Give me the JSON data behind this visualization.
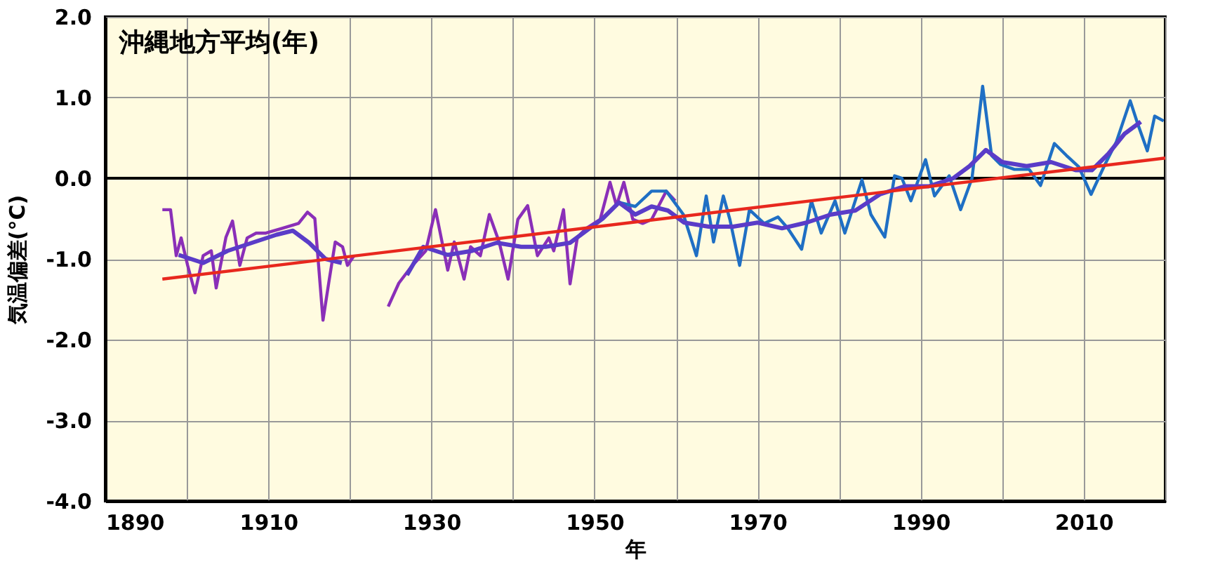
{
  "chart_data": {
    "type": "line",
    "title": "沖縄地方平均(年)",
    "xlabel": "年",
    "ylabel": "気温偏差(°C)",
    "xlim": [
      1890,
      2020
    ],
    "ylim": [
      -4,
      2
    ],
    "xticks": [
      1890,
      {
        "value": 1900,
        "label": null
      },
      1910,
      {
        "value": 1920,
        "label": null
      },
      1930,
      {
        "value": 1940,
        "label": null
      },
      1950,
      {
        "value": 1960,
        "label": null
      },
      1970,
      {
        "value": 1980,
        "label": null
      },
      1990,
      {
        "value": 2000,
        "label": null
      },
      2010,
      {
        "value": 2020,
        "label": null
      }
    ],
    "yticks": [
      {
        "value": 2,
        "label": "2.0"
      },
      {
        "value": 1,
        "label": "1.0"
      },
      {
        "value": 0,
        "label": "0.0"
      },
      {
        "value": -1,
        "label": "-1.0"
      },
      {
        "value": -2,
        "label": "-2.0"
      },
      {
        "value": -3,
        "label": "-3.0"
      },
      {
        "value": -4,
        "label": "-4.0"
      }
    ],
    "grid": true,
    "marker": "none",
    "line_style": "solid",
    "ref_lines": [
      {
        "axis": "y",
        "value": 0,
        "label": null,
        "color": "#000000"
      }
    ],
    "series": [
      {
        "color": "#8a2fb8",
        "x": [
          1897,
          1898,
          1898.7,
          1899.3,
          1900.1,
          1901,
          1902,
          1903,
          1903.6,
          1904.8,
          1905.6,
          1906.5,
          1907.4,
          1908.5,
          1909.7,
          1911.7,
          1913.7,
          1914.8,
          1915.7,
          1916.7,
          1917.4,
          1918.2,
          1919.1,
          1919.7,
          1920.5,
          1923,
          1924.7,
          1926,
          1927.5,
          1929.3,
          1930.5,
          1932,
          1932.8,
          1934,
          1934.8,
          1936,
          1937.1,
          1938.3,
          1939.4,
          1940.6,
          1941.8,
          1943,
          1944.4,
          1945,
          1946.2,
          1947,
          1947.9,
          1949,
          1950.7,
          1951.9,
          1952.7,
          1953.6,
          1954.7,
          1955.9,
          1957,
          1958.8,
          1959.9
        ],
        "values": [
          -0.39,
          -0.39,
          -0.96,
          -0.74,
          -1.08,
          -1.42,
          -0.96,
          -0.9,
          -1.36,
          -0.73,
          -0.53,
          -1.08,
          -0.74,
          -0.68,
          -0.68,
          -0.62,
          -0.56,
          -0.42,
          -0.5,
          -1.76,
          -1.3,
          -0.79,
          -0.85,
          -1.08,
          -0.96,
          null,
          -1.59,
          -1.3,
          -1.1,
          -0.9,
          -0.39,
          -1.14,
          -0.79,
          -1.25,
          -0.85,
          -0.96,
          -0.45,
          -0.79,
          -1.25,
          -0.51,
          -0.34,
          -0.96,
          -0.74,
          -0.9,
          -0.39,
          -1.31,
          -0.73,
          -0.62,
          -0.51,
          -0.05,
          -0.34,
          -0.05,
          -0.51,
          -0.56,
          -0.51,
          -0.16,
          -0.28
        ]
      },
      {
        "color": "#1f6fc4",
        "x": [
          1953,
          1955,
          1957,
          1958.8,
          1960.9,
          1962.5,
          1963.7,
          1964.6,
          1965.8,
          1966.6,
          1967.8,
          1969,
          1970.8,
          1972.5,
          1973.7,
          1975.4,
          1976.6,
          1977.8,
          1979.5,
          1980.7,
          1982.8,
          1983.9,
          1985.6,
          1986.8,
          1987.7,
          1988.8,
          1990.6,
          1991.7,
          1993.5,
          1994.9,
          1996.3,
          1997.6,
          1998.7,
          1999.8,
          2001.5,
          2003.3,
          2004.7,
          2006.4,
          2007.9,
          2009.4,
          2010.9,
          2012.6,
          2014,
          2015.7,
          2016.6,
          2017.8,
          2018.7,
          2019.8
        ],
        "values": [
          -0.3,
          -0.35,
          -0.16,
          -0.16,
          -0.45,
          -0.96,
          -0.22,
          -0.79,
          -0.22,
          -0.51,
          -1.08,
          -0.39,
          -0.56,
          -0.48,
          -0.62,
          -0.88,
          -0.28,
          -0.68,
          -0.28,
          -0.68,
          -0.02,
          -0.45,
          -0.73,
          0.03,
          0.0,
          -0.28,
          0.23,
          -0.22,
          0.03,
          -0.39,
          0.0,
          1.14,
          0.28,
          0.17,
          0.11,
          0.11,
          -0.09,
          0.43,
          0.28,
          0.14,
          -0.2,
          0.17,
          0.45,
          0.96,
          0.68,
          0.34,
          0.77,
          0.71
        ]
      },
      {
        "color": "#5a3cc8",
        "x": [
          1899,
          1902,
          1905,
          1908,
          1911,
          1913,
          1915,
          1917,
          1919,
          1923,
          1927,
          1929,
          1932,
          1935,
          1938,
          1941,
          1944,
          1947,
          1949,
          1951,
          1953,
          1955,
          1957,
          1959,
          1961,
          1964,
          1967,
          1970,
          1973,
          1976,
          1979,
          1982,
          1985,
          1988,
          1991,
          1994,
          1996,
          1998,
          2000,
          2003,
          2006,
          2009,
          2011,
          2013,
          2015,
          2017
        ],
        "values": [
          -0.95,
          -1.05,
          -0.9,
          -0.8,
          -0.7,
          -0.65,
          -0.8,
          -1.0,
          -1.05,
          null,
          -1.2,
          -0.85,
          -0.95,
          -0.9,
          -0.8,
          -0.85,
          -0.85,
          -0.8,
          -0.65,
          -0.5,
          -0.3,
          -0.45,
          -0.35,
          -0.4,
          -0.55,
          -0.6,
          -0.6,
          -0.55,
          -0.62,
          -0.55,
          -0.45,
          -0.4,
          -0.2,
          -0.1,
          -0.1,
          0.0,
          0.15,
          0.35,
          0.2,
          0.15,
          0.2,
          0.1,
          0.1,
          0.3,
          0.55,
          0.7
        ]
      },
      {
        "color": "#e8281e",
        "x": [
          1897,
          2020
        ],
        "values": [
          -1.25,
          0.25
        ]
      }
    ]
  }
}
